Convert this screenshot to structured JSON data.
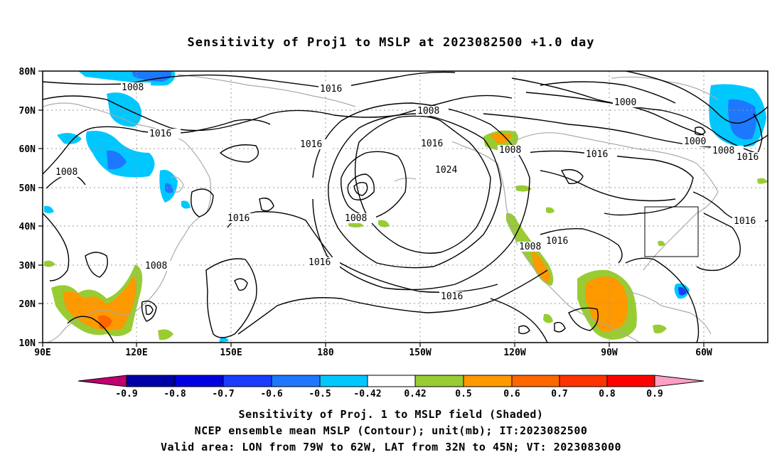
{
  "title": "Sensitivity of Proj1 to MSLP at 2023082500 +1.0 day",
  "axes": {
    "lat_labels": [
      "80N",
      "70N",
      "60N",
      "50N",
      "40N",
      "30N",
      "20N",
      "10N"
    ],
    "lon_labels": [
      "90E",
      "120E",
      "150E",
      "180",
      "150W",
      "120W",
      "90W",
      "60W"
    ]
  },
  "colorbar": {
    "labels": [
      "-0.9",
      "-0.8",
      "-0.7",
      "-0.6",
      "-0.5",
      "-0.42",
      "0.42",
      "0.5",
      "0.6",
      "0.7",
      "0.8",
      "0.9"
    ],
    "colors": [
      "#c0006e",
      "#0000a8",
      "#0000e0",
      "#1a3cff",
      "#1e78ff",
      "#0aaaff",
      "#00c8ff",
      "#ffffff",
      "#99cc33",
      "#ff9900",
      "#ff6600",
      "#ff3300",
      "#ff0000",
      "#ff9fc6"
    ]
  },
  "contour_labels": [
    "1008",
    "1016",
    "1008",
    "1000",
    "1016",
    "1016",
    "1008",
    "1016",
    "1024",
    "1000",
    "1008",
    "1016",
    "1016",
    "1008",
    "1008",
    "1008",
    "1016",
    "1016",
    "1016",
    "1008",
    "1016"
  ],
  "valid_area": {
    "lon_from": "79W",
    "lon_to": "62W",
    "lat_from": "32N",
    "lat_to": "45N"
  },
  "captions": {
    "line1": "Sensitivity of Proj. 1 to MSLP field (Shaded)",
    "line2": "NCEP ensemble mean MSLP (Contour); unit(mb); IT:2023082500",
    "line3": "Valid area: LON from 79W to 62W, LAT from 32N to 45N; VT: 2023083000"
  }
}
